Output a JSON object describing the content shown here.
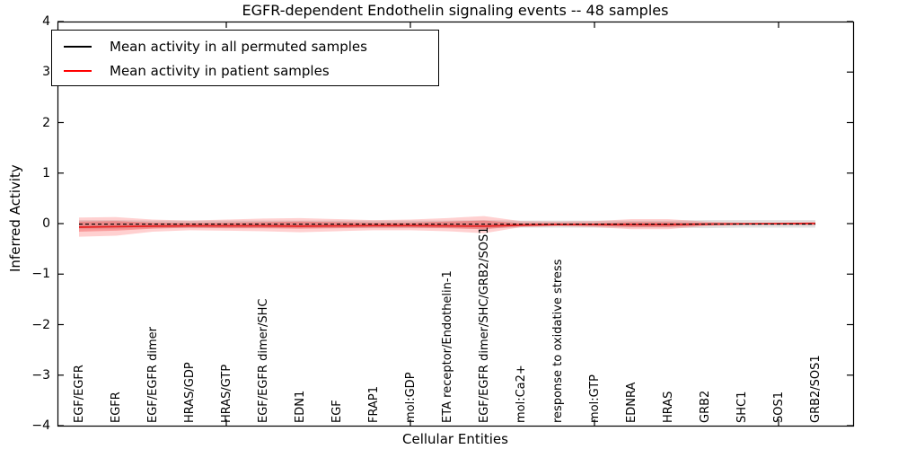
{
  "figure": {
    "title": "EGFR-dependent Endothelin signaling events -- 48 samples",
    "xlabel": "Cellular Entities",
    "ylabel": "Inferred Activity"
  },
  "legend": {
    "position": "upper left",
    "items": [
      {
        "label": "Mean activity in all permuted samples",
        "color": "#000000",
        "style": "solid"
      },
      {
        "label": "Mean activity in patient samples",
        "color": "#ff0000",
        "style": "solid"
      }
    ]
  },
  "colors": {
    "frame": "#000000",
    "background": "#ffffff",
    "permuted_line": "#000000",
    "patient_line": "#e62222",
    "permuted_band": "rgba(120,120,120,0.22)",
    "patient_band_outer": "rgba(255,40,40,0.22)",
    "patient_band_inner": "rgba(235,30,30,0.30)"
  },
  "chart_data": {
    "type": "line",
    "title": "EGFR-dependent Endothelin signaling events -- 48 samples",
    "xlabel": "Cellular Entities",
    "ylabel": "Inferred Activity",
    "ylim": [
      -4,
      4
    ],
    "grid": false,
    "legend_position": "upper left",
    "ytick_labels": [
      "−4",
      "−3",
      "−2",
      "−1",
      "0",
      "1",
      "2",
      "3",
      "4"
    ],
    "ytick_values": [
      -4,
      -3,
      -2,
      -1,
      0,
      1,
      2,
      3,
      4
    ],
    "x_axis_tick_indices": [
      4,
      9,
      14,
      19
    ],
    "categories": [
      "EGF/EGFR",
      "EGFR",
      "EGF/EGFR dimer",
      "HRAS/GDP",
      "HRAS/GTP",
      "EGF/EGFR dimer/SHC",
      "EDN1",
      "EGF",
      "FRAP1",
      "mol:GDP",
      "ETA receptor/Endothelin-1",
      "EGF/EGFR dimer/SHC/GRB2/SOS1",
      "mol:Ca2+",
      "response to oxidative stress",
      "mol:GTP",
      "EDNRA",
      "HRAS",
      "GRB2",
      "SHC1",
      "SOS1",
      "GRB2/SOS1"
    ],
    "series": [
      {
        "name": "Mean activity in all permuted samples",
        "style": "dashed",
        "values": [
          -0.01,
          -0.01,
          -0.01,
          -0.01,
          -0.01,
          -0.01,
          -0.01,
          -0.01,
          -0.01,
          -0.01,
          -0.01,
          -0.01,
          -0.01,
          -0.01,
          -0.01,
          -0.01,
          -0.01,
          -0.01,
          -0.01,
          -0.01,
          -0.01
        ]
      },
      {
        "name": "Mean activity in patient samples",
        "style": "solid",
        "values": [
          -0.07,
          -0.06,
          -0.05,
          -0.045,
          -0.045,
          -0.045,
          -0.05,
          -0.045,
          -0.04,
          -0.04,
          -0.045,
          -0.05,
          -0.03,
          -0.02,
          -0.02,
          -0.02,
          -0.02,
          -0.01,
          -0.005,
          0.0,
          0.005
        ]
      }
    ],
    "bands": [
      {
        "name": "permuted-samples-std-band",
        "colorKey": "permuted_band",
        "upper": [
          0.07,
          0.07,
          0.06,
          0.06,
          0.06,
          0.06,
          0.06,
          0.06,
          0.06,
          0.06,
          0.06,
          0.07,
          0.06,
          0.06,
          0.06,
          0.06,
          0.06,
          0.07,
          0.07,
          0.07,
          0.07
        ],
        "lower": [
          -0.1,
          -0.1,
          -0.09,
          -0.09,
          -0.09,
          -0.09,
          -0.09,
          -0.09,
          -0.09,
          -0.09,
          -0.09,
          -0.1,
          -0.08,
          -0.08,
          -0.08,
          -0.08,
          -0.08,
          -0.09,
          -0.08,
          -0.08,
          -0.08
        ]
      },
      {
        "name": "patient-samples-std-band-outer",
        "colorKey": "patient_band_outer",
        "upper": [
          0.12,
          0.13,
          0.08,
          0.06,
          0.08,
          0.1,
          0.11,
          0.09,
          0.07,
          0.08,
          0.11,
          0.15,
          0.05,
          0.04,
          0.05,
          0.09,
          0.09,
          0.04,
          0.02,
          0.02,
          0.03
        ],
        "lower": [
          -0.26,
          -0.24,
          -0.16,
          -0.13,
          -0.14,
          -0.15,
          -0.17,
          -0.15,
          -0.13,
          -0.13,
          -0.15,
          -0.19,
          -0.07,
          -0.05,
          -0.07,
          -0.11,
          -0.11,
          -0.05,
          -0.03,
          -0.03,
          -0.03
        ]
      },
      {
        "name": "patient-samples-std-band-inner",
        "colorKey": "patient_band_inner",
        "upper": [
          0.04,
          0.05,
          0.02,
          0.015,
          0.02,
          0.03,
          0.04,
          0.03,
          0.02,
          0.02,
          0.04,
          0.06,
          0.01,
          0.01,
          0.01,
          0.03,
          0.03,
          0.01,
          0.005,
          0.005,
          0.01
        ],
        "lower": [
          -0.16,
          -0.14,
          -0.1,
          -0.08,
          -0.09,
          -0.09,
          -0.1,
          -0.09,
          -0.08,
          -0.08,
          -0.09,
          -0.11,
          -0.05,
          -0.03,
          -0.04,
          -0.07,
          -0.07,
          -0.03,
          -0.015,
          -0.015,
          -0.02
        ]
      }
    ]
  }
}
